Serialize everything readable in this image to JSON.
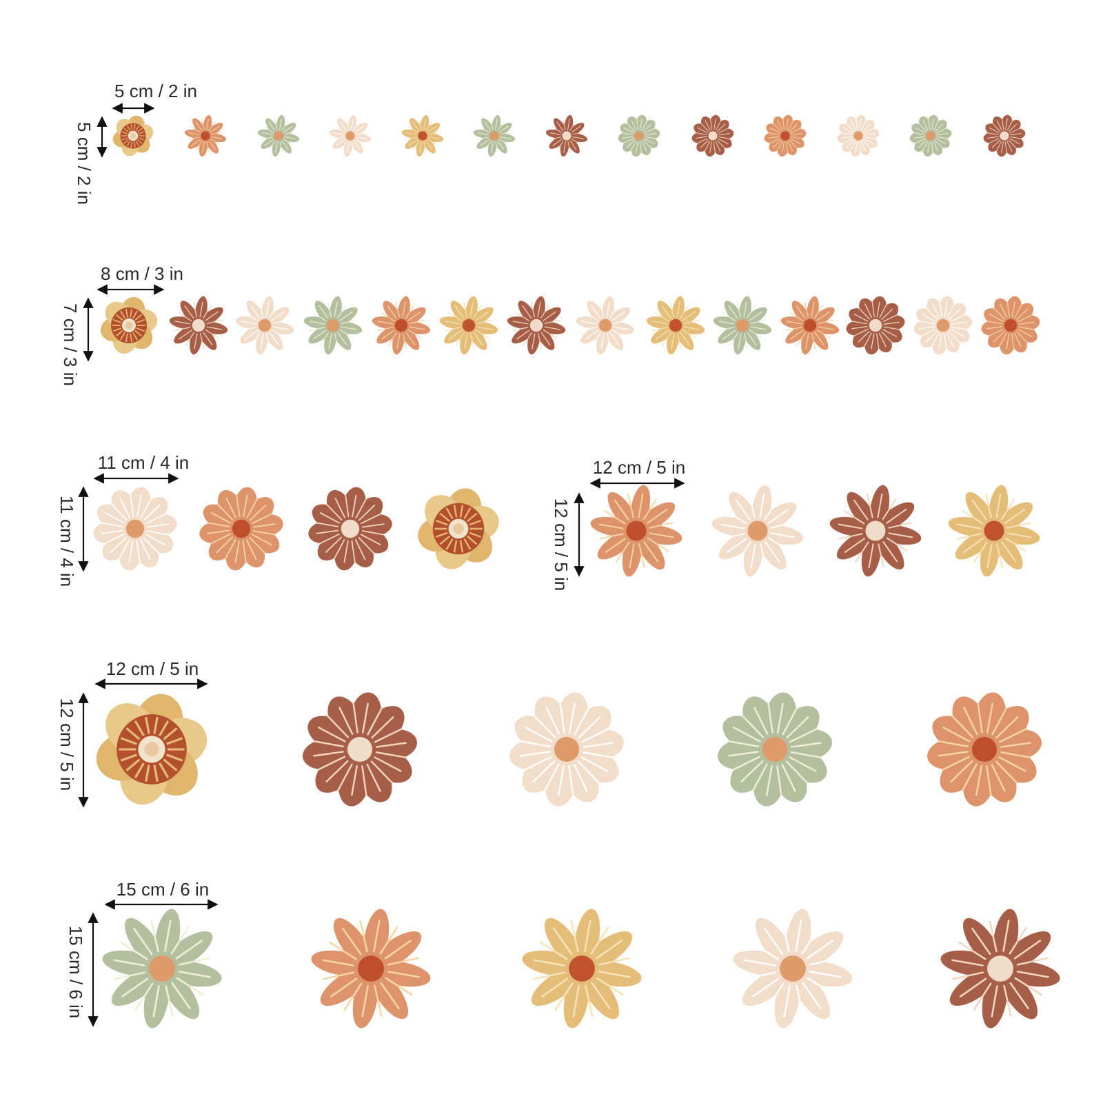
{
  "groups": [
    {
      "width_label": "5 cm / 2 in",
      "height_label": "5 cm / 2 in"
    },
    {
      "width_label": "8 cm / 3 in",
      "height_label": "7 cm / 3 in"
    },
    {
      "width_label": "11 cm / 4 in",
      "height_label": "11 cm / 4 in"
    },
    {
      "width_label": "12 cm / 5 in",
      "height_label": "12 cm / 5 in"
    },
    {
      "width_label": "12 cm / 5 in",
      "height_label": "12 cm / 5 in"
    },
    {
      "width_label": "15 cm / 6 in",
      "height_label": "15 cm / 6 in"
    }
  ]
}
